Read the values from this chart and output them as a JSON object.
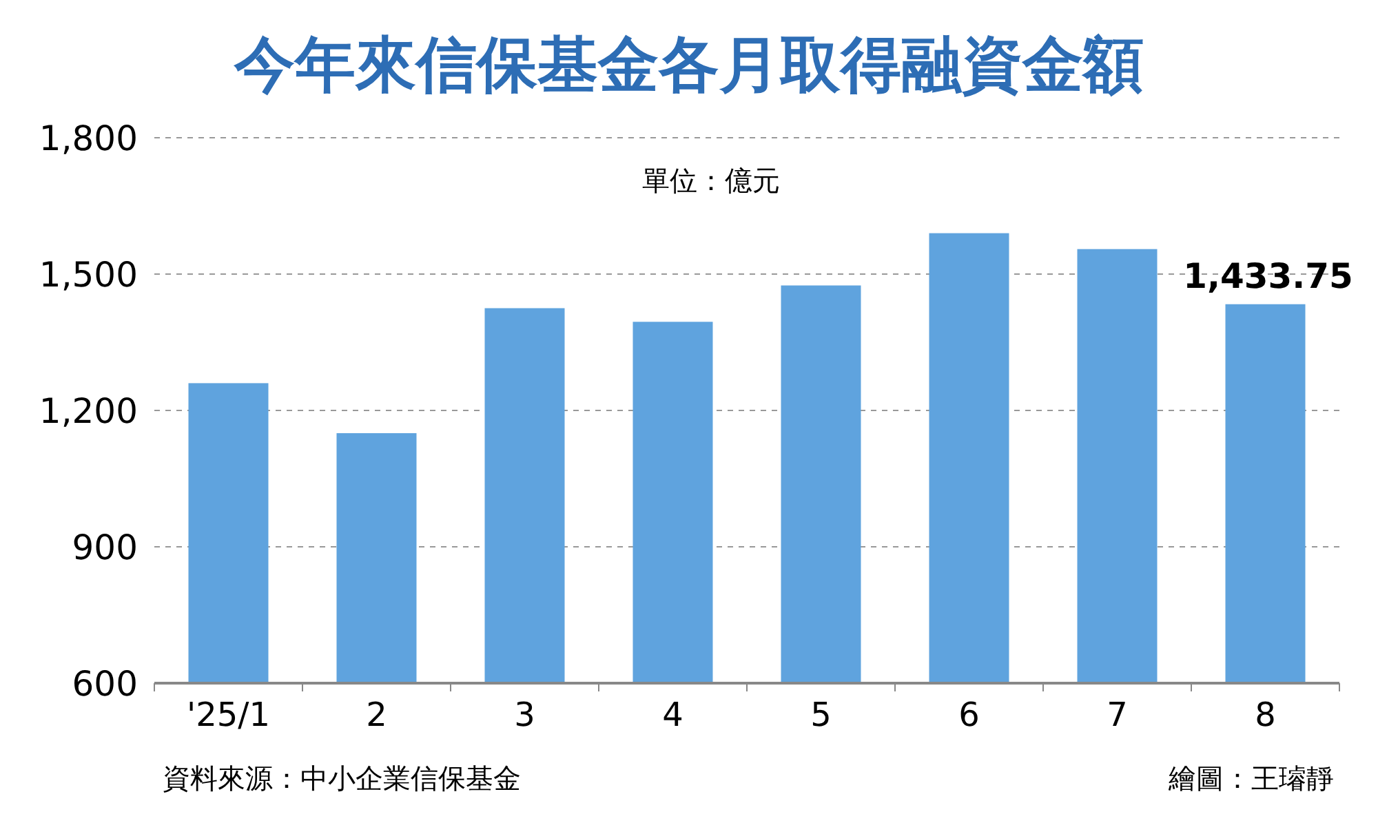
{
  "chart_data": {
    "type": "bar",
    "title": "今年來信保基金各月取得融資金額",
    "categories": [
      "'25/1",
      "2",
      "3",
      "4",
      "5",
      "6",
      "7",
      "8"
    ],
    "values": [
      1260,
      1150,
      1425,
      1395,
      1475,
      1590,
      1555,
      1433.75
    ],
    "value_labels": [
      null,
      null,
      null,
      null,
      null,
      null,
      null,
      "1,433.75"
    ],
    "color": "#5fa3de",
    "ylim": [
      600,
      1800
    ],
    "yticks": [
      600,
      900,
      {
        "value": 1200,
        "label": "1,200"
      },
      {
        "value": 1500,
        "label": "1,500"
      },
      {
        "value": 1800,
        "label": "1,800"
      }
    ],
    "grid": "y",
    "annotations": [
      "單位：億元",
      "資料來源：中小企業信保基金",
      "繪圖：王璿靜"
    ]
  }
}
